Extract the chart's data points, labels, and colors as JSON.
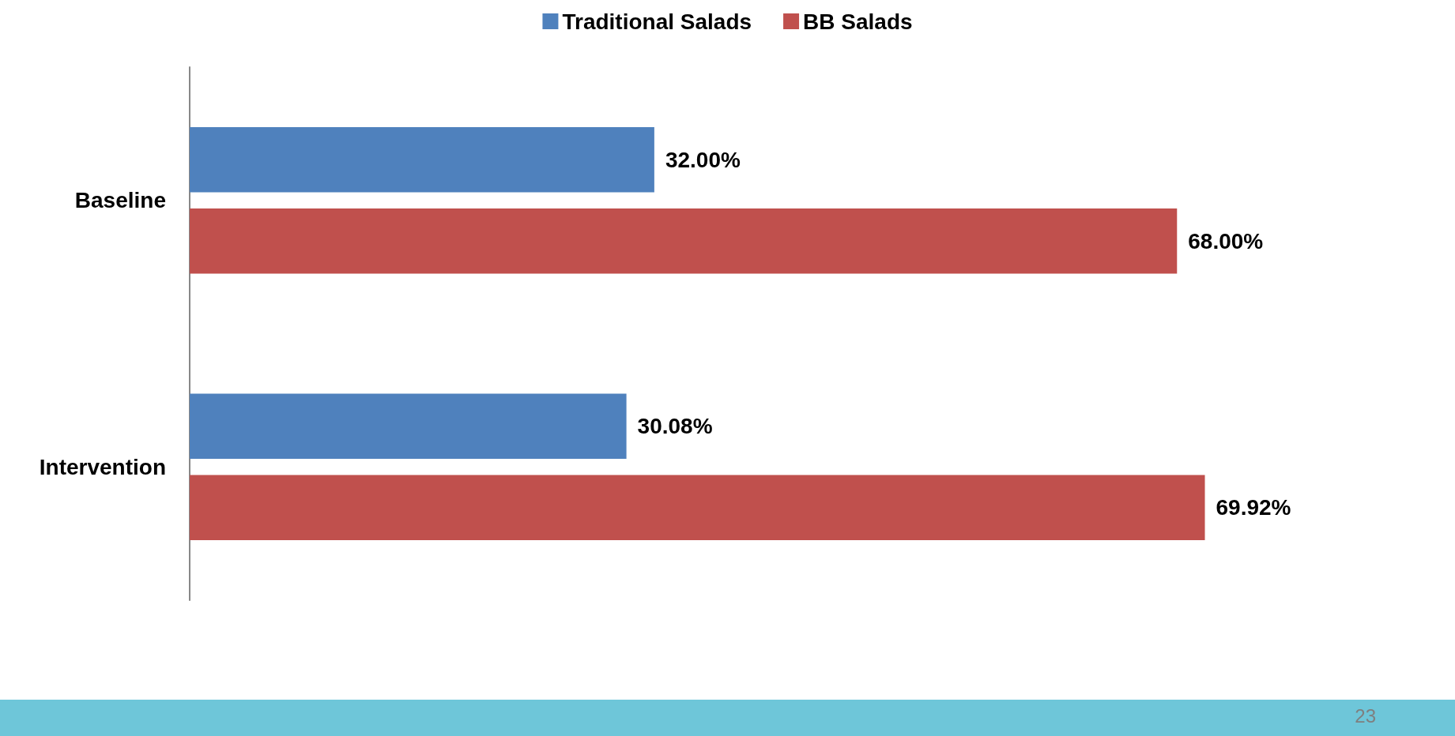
{
  "chart_data": {
    "type": "bar",
    "orientation": "horizontal",
    "categories": [
      "Baseline",
      "Intervention"
    ],
    "series": [
      {
        "name": "Traditional Salads",
        "color": "#4f81bd",
        "values": [
          32.0,
          30.08
        ],
        "value_labels": [
          "32.00%",
          "30.08%"
        ]
      },
      {
        "name": "BB Salads",
        "color": "#c0504d",
        "values": [
          68.0,
          69.92
        ],
        "value_labels": [
          "68.00%",
          "69.92%"
        ]
      }
    ],
    "legend": "top",
    "annotations": [
      "23"
    ]
  }
}
